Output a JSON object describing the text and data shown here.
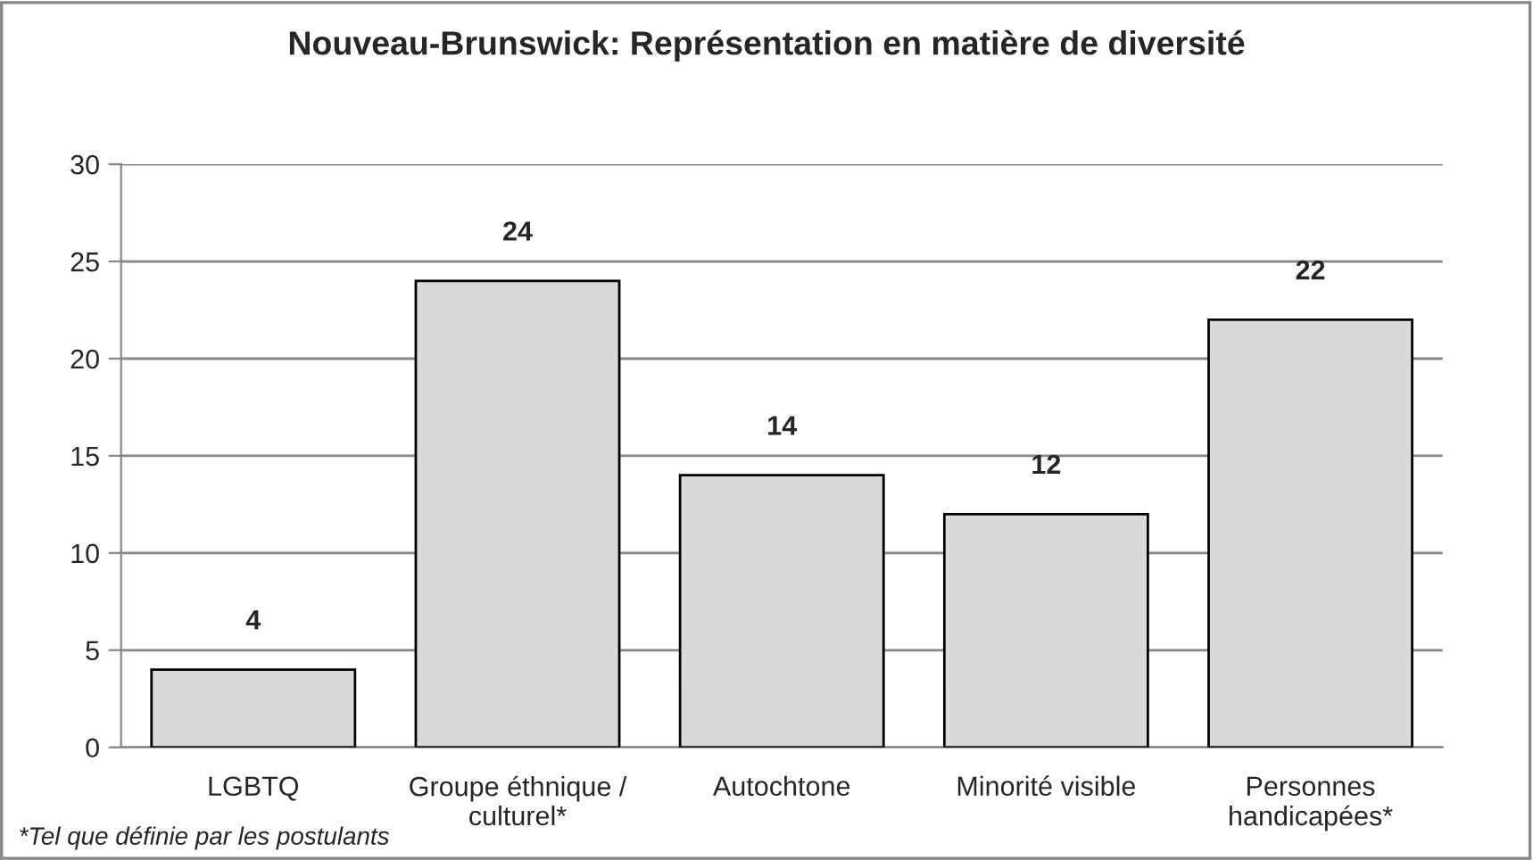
{
  "chart_data": {
    "type": "bar",
    "title": "Nouveau-Brunswick: Représentation en matière de diversité",
    "categories": [
      "LGBTQ",
      "Groupe éthnique /\nculturel*",
      "Autochtone",
      "Minorité visible",
      "Personnes\nhandicapées*"
    ],
    "values": [
      4,
      24,
      14,
      12,
      22
    ],
    "color": "#d9d9d9",
    "ylim": [
      0,
      30
    ],
    "yticks": [
      0,
      5,
      10,
      15,
      20,
      25,
      30
    ],
    "grid": "y",
    "data_labels": true,
    "annotations": [
      "*Tel que définie par les postulants"
    ]
  }
}
